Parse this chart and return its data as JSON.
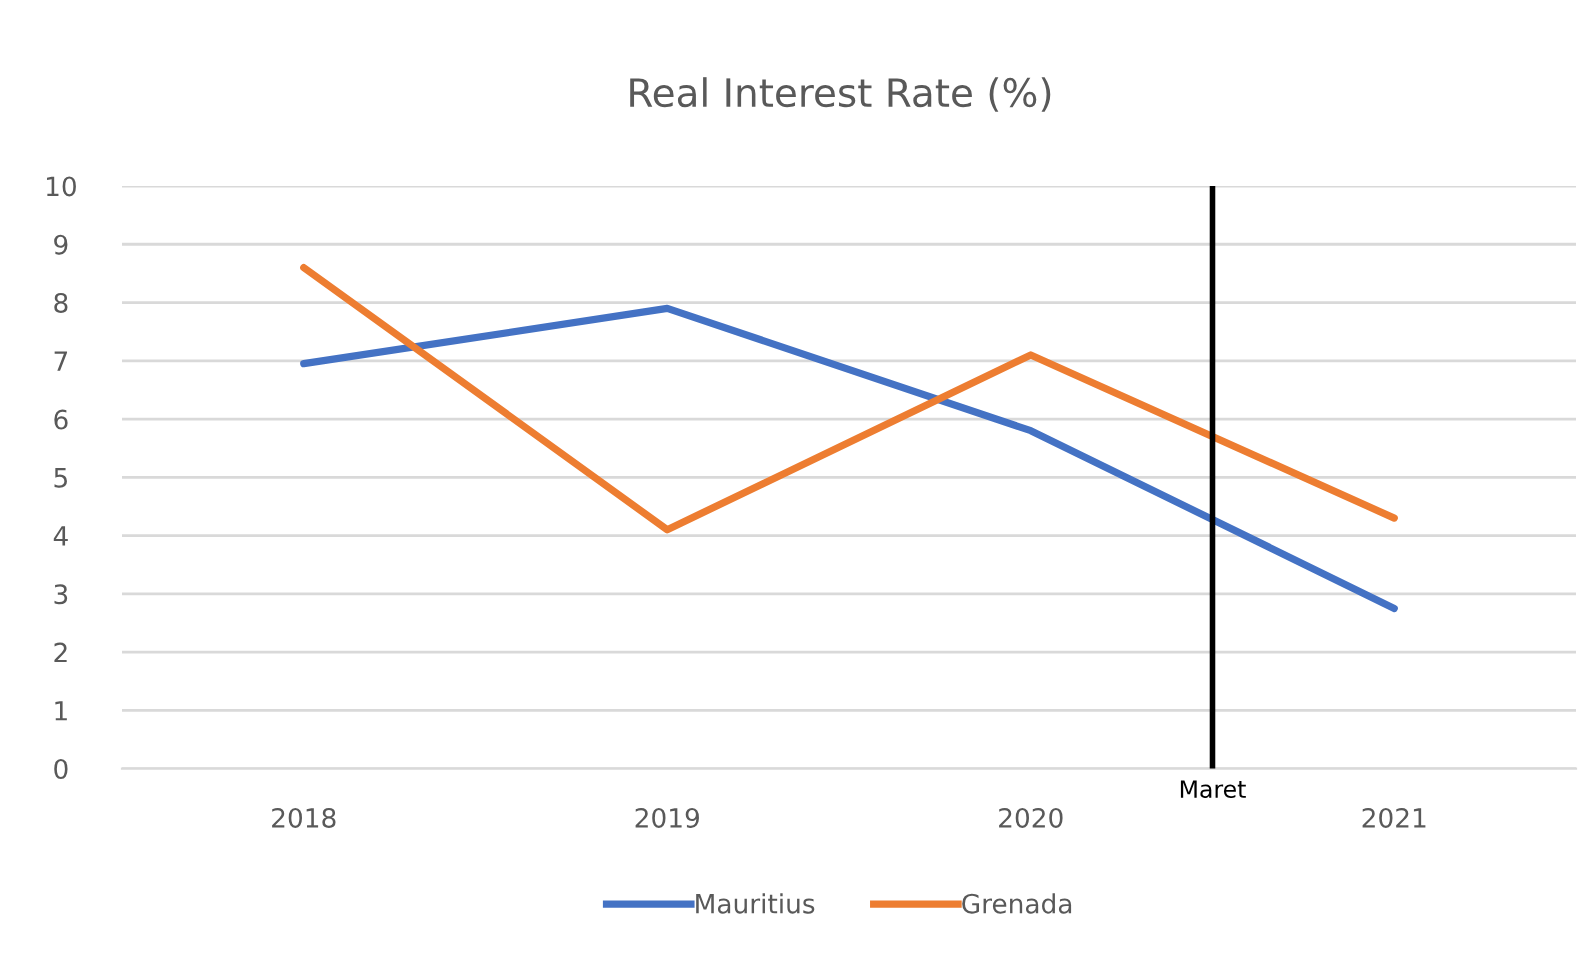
{
  "chart_data": {
    "type": "line",
    "title": "Real Interest Rate (%)",
    "x": [
      2018,
      2019,
      2020,
      2021
    ],
    "xlim": [
      2017.5,
      2021.5
    ],
    "xticks": [
      2018,
      2019,
      2020,
      2021
    ],
    "ylim": [
      0,
      10
    ],
    "yticks": [
      0,
      1,
      2,
      3,
      4,
      5,
      6,
      7,
      8,
      9,
      10
    ],
    "grid": "y",
    "legend": "bottom",
    "marker": "none",
    "line_style": "solid",
    "series": [
      {
        "name": "Mauritius",
        "color": "#4472c4",
        "values": [
          6.95,
          7.9,
          5.8,
          2.75
        ]
      },
      {
        "name": "Grenada",
        "color": "#ed7d31",
        "values": [
          8.6,
          4.1,
          7.1,
          4.3
        ]
      }
    ],
    "ref_lines": [
      {
        "axis": "x",
        "value": 2020.5,
        "label": "Maret",
        "color": "#000000",
        "line_style": "solid"
      }
    ]
  }
}
